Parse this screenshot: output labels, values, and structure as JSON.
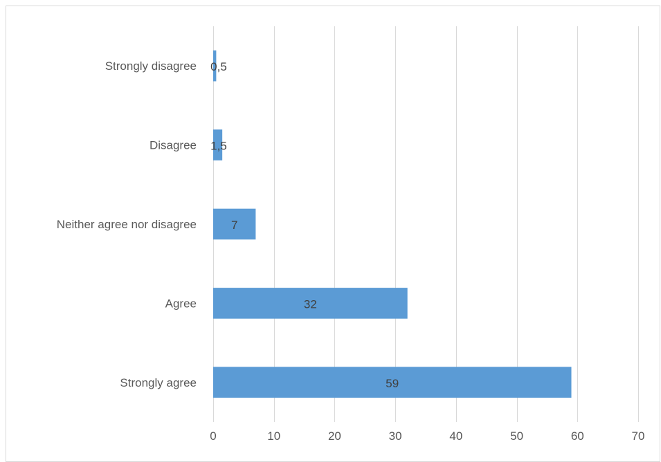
{
  "chart_data": {
    "type": "bar",
    "orientation": "horizontal",
    "title": "",
    "xlabel": "",
    "ylabel": "",
    "categories": [
      "Strongly disagree",
      "Disagree",
      "Neither agree nor disagree",
      "Agree",
      "Strongly agree"
    ],
    "values": [
      0.5,
      1.5,
      7,
      32,
      59
    ],
    "value_labels": [
      "0,5",
      "1,5",
      "7",
      "32",
      "59"
    ],
    "xlim": [
      0,
      70
    ],
    "ticks": [
      0,
      10,
      20,
      30,
      40,
      50,
      60,
      70
    ],
    "tick_labels": [
      "0",
      "10",
      "20",
      "30",
      "40",
      "50",
      "60",
      "70"
    ],
    "grid": "vertical major gridlines",
    "legend": "none",
    "bar_color": "#5b9bd5"
  }
}
